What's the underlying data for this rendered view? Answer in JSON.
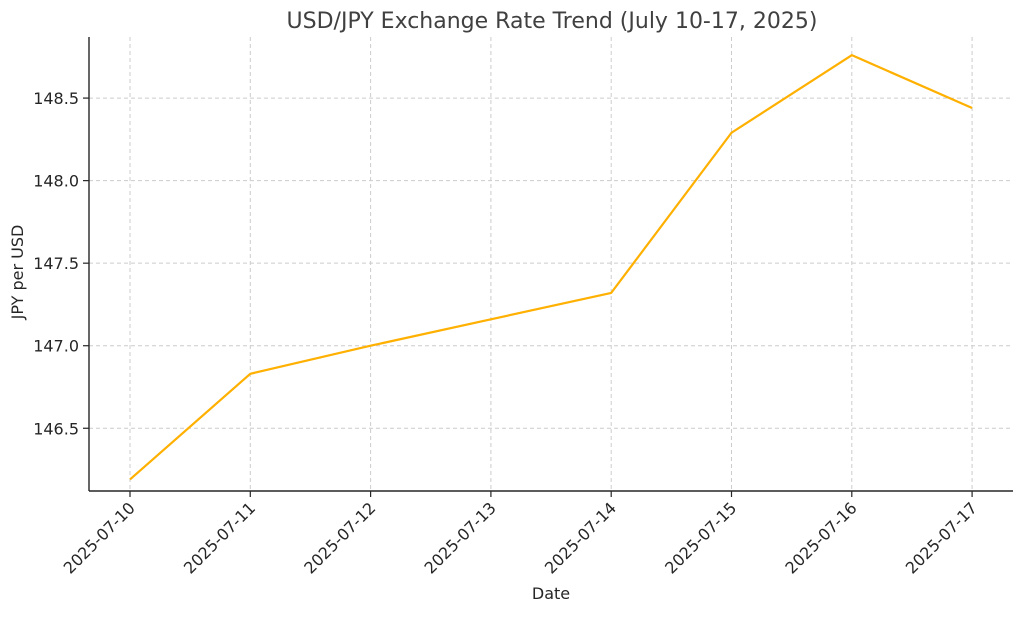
{
  "chart_data": {
    "type": "line",
    "title": "USD/JPY Exchange Rate Trend (July 10-17, 2025)",
    "xlabel": "Date",
    "ylabel": "JPY per USD",
    "categories": [
      "2025-07-10",
      "2025-07-11",
      "2025-07-12",
      "2025-07-13",
      "2025-07-14",
      "2025-07-15",
      "2025-07-16",
      "2025-07-17"
    ],
    "series": [
      {
        "color": "#FFB000",
        "values": [
          146.19,
          146.83,
          147.0,
          147.16,
          147.32,
          148.29,
          148.76,
          148.44
        ]
      }
    ],
    "yticks": [
      146.5,
      147.0,
      147.5,
      148.0,
      148.5
    ],
    "ytick_labels": [
      "146.5",
      "147.0",
      "147.5",
      "148.0",
      "148.5"
    ],
    "ylim": [
      146.12,
      148.87
    ],
    "grid": true,
    "legend": false
  }
}
